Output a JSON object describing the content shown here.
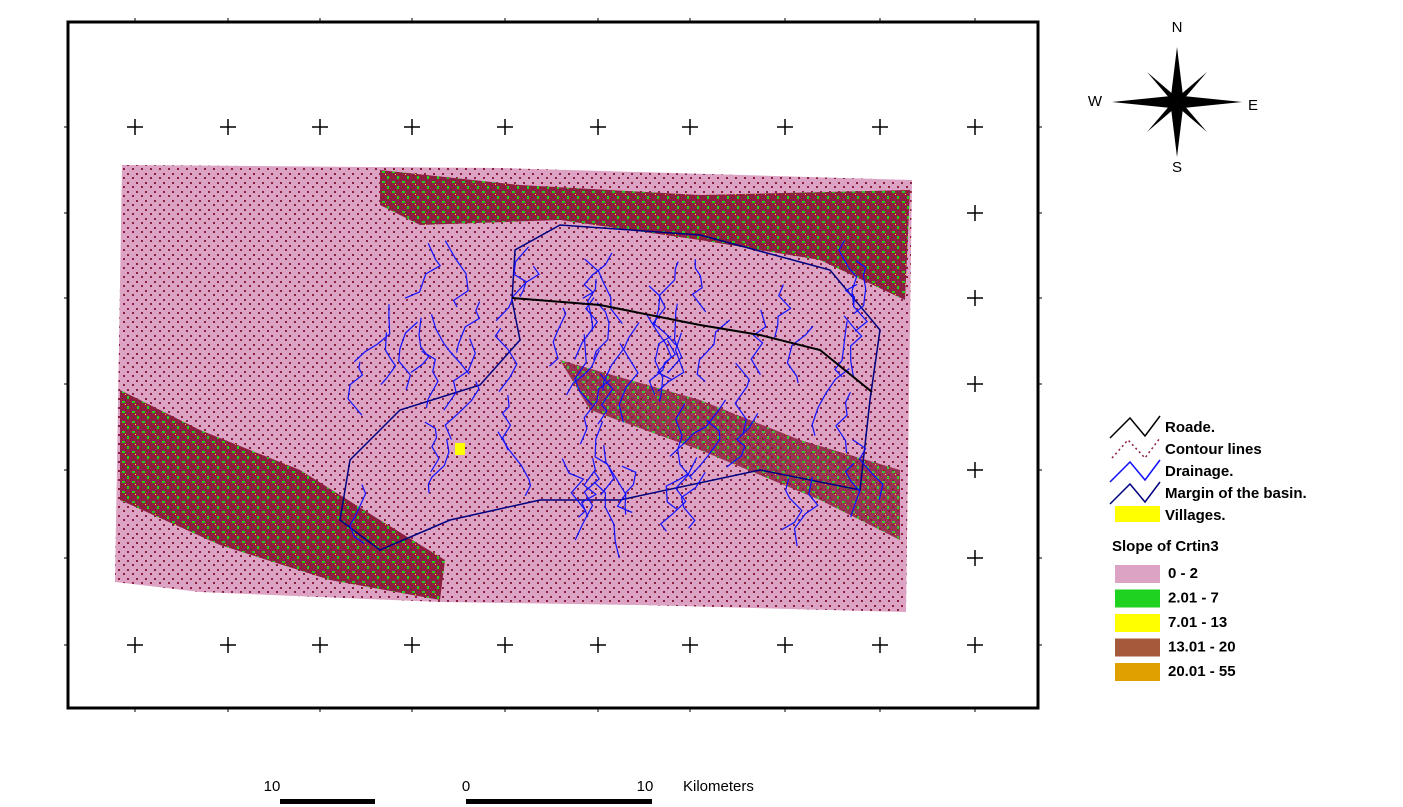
{
  "compass": {
    "north": "N",
    "east": "E",
    "south": "S",
    "west": "W"
  },
  "legend": {
    "layers": [
      "Roade.",
      "Contour lines",
      "Drainage.",
      "Margin of the basin.",
      "Villages."
    ],
    "title": "Slope of Crtin3",
    "classes": [
      {
        "label": "0 - 2",
        "color": "#dca3c4"
      },
      {
        "label": "2.01 - 7",
        "color": "#1fd21f"
      },
      {
        "label": "7.01 - 13",
        "color": "#ffff00"
      },
      {
        "label": "13.01 - 20",
        "color": "#a55a3c"
      },
      {
        "label": "20.01 - 55",
        "color": "#e0a000"
      }
    ]
  },
  "scale_bar": {
    "labels": [
      "10",
      "0",
      "10"
    ],
    "unit": "Kilometers"
  }
}
